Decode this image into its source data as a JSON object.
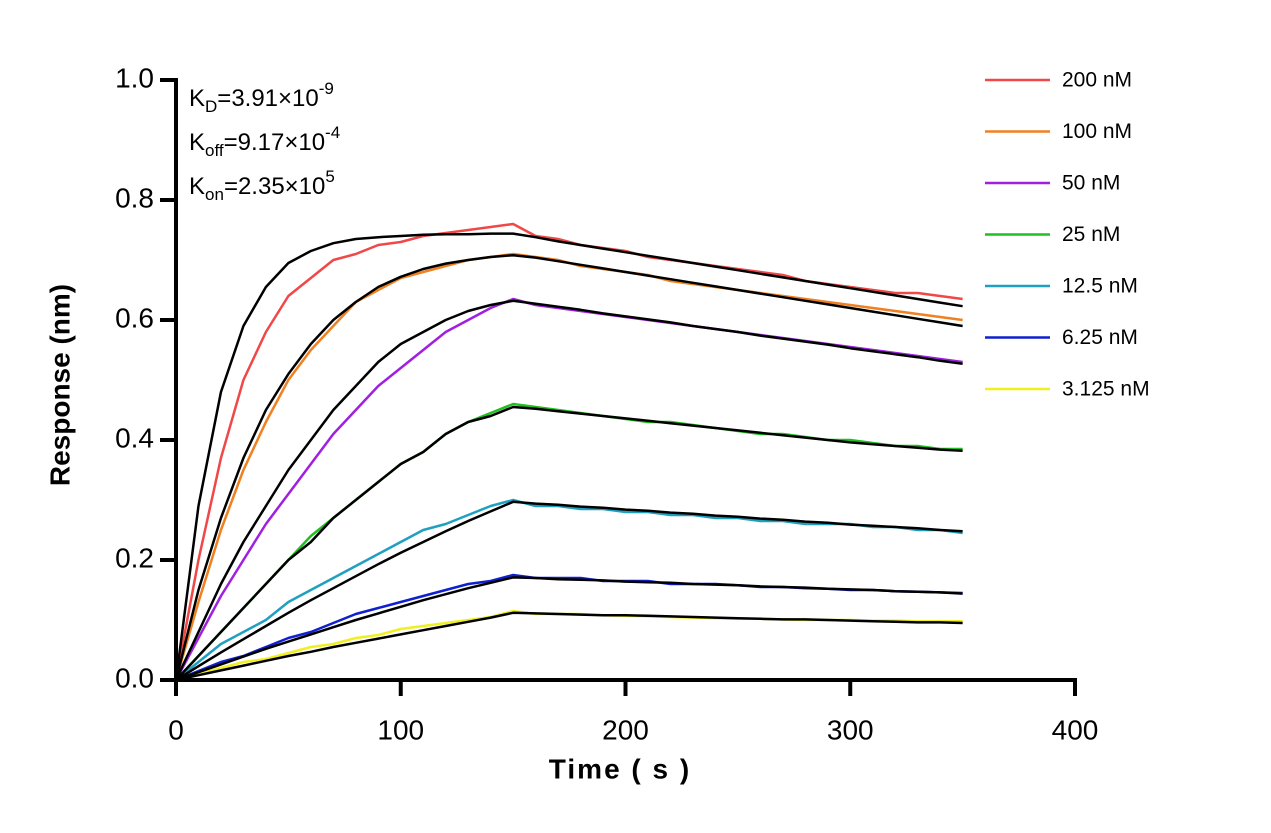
{
  "chart_data": {
    "type": "line",
    "xlabel": "Time ( s )",
    "ylabel": "Response (nm)",
    "xlim": [
      0,
      400
    ],
    "xticks": [
      0,
      100,
      200,
      300,
      400
    ],
    "ylim": [
      0,
      1
    ],
    "yticks": [
      {
        "value": 0,
        "label": "0.0"
      },
      0.2,
      0.4,
      0.6,
      0.8,
      {
        "value": 1,
        "label": "1.0"
      }
    ],
    "legend": "right",
    "annotations": [
      {
        "main": "K",
        "sub": "D",
        "text": "=3.91×10",
        "sup": "-9"
      },
      {
        "main": "K",
        "sub": "off",
        "text": "=9.17×10",
        "sup": "-4"
      },
      {
        "main": "K",
        "sub": "on",
        "text": "=2.35×10",
        "sup": "5"
      }
    ],
    "x": [
      0,
      10,
      20,
      30,
      40,
      50,
      60,
      70,
      80,
      90,
      100,
      110,
      120,
      130,
      140,
      150,
      160,
      170,
      180,
      190,
      200,
      210,
      220,
      230,
      240,
      250,
      260,
      270,
      280,
      290,
      300,
      310,
      320,
      330,
      340,
      350
    ],
    "series": [
      {
        "name": "200 nM",
        "color": "#f04848",
        "values": [
          0,
          0.2,
          0.37,
          0.5,
          0.58,
          0.64,
          0.67,
          0.7,
          0.71,
          0.725,
          0.73,
          0.74,
          0.745,
          0.75,
          0.755,
          0.76,
          0.74,
          0.735,
          0.725,
          0.72,
          0.715,
          0.705,
          0.7,
          0.695,
          0.69,
          0.685,
          0.68,
          0.675,
          0.665,
          0.66,
          0.655,
          0.65,
          0.645,
          0.645,
          0.64,
          0.635
        ]
      },
      {
        "name": "100 nM",
        "color": "#f08020",
        "values": [
          0,
          0.13,
          0.25,
          0.35,
          0.43,
          0.5,
          0.55,
          0.59,
          0.63,
          0.65,
          0.67,
          0.68,
          0.69,
          0.7,
          0.705,
          0.71,
          0.705,
          0.7,
          0.69,
          0.685,
          0.68,
          0.675,
          0.665,
          0.66,
          0.655,
          0.65,
          0.645,
          0.64,
          0.635,
          0.63,
          0.625,
          0.62,
          0.615,
          0.61,
          0.605,
          0.6
        ]
      },
      {
        "name": "50 nM",
        "color": "#a020e0",
        "values": [
          0,
          0.07,
          0.14,
          0.2,
          0.26,
          0.31,
          0.36,
          0.41,
          0.45,
          0.49,
          0.52,
          0.55,
          0.58,
          0.6,
          0.62,
          0.635,
          0.625,
          0.62,
          0.615,
          0.61,
          0.605,
          0.6,
          0.595,
          0.59,
          0.585,
          0.58,
          0.575,
          0.57,
          0.565,
          0.56,
          0.555,
          0.55,
          0.545,
          0.54,
          0.535,
          0.53
        ]
      },
      {
        "name": "25 nM",
        "color": "#20c020",
        "values": [
          0,
          0.04,
          0.08,
          0.12,
          0.16,
          0.2,
          0.24,
          0.27,
          0.3,
          0.33,
          0.36,
          0.38,
          0.41,
          0.43,
          0.445,
          0.46,
          0.455,
          0.45,
          0.445,
          0.44,
          0.435,
          0.43,
          0.43,
          0.425,
          0.42,
          0.415,
          0.41,
          0.41,
          0.405,
          0.4,
          0.4,
          0.395,
          0.39,
          0.39,
          0.385,
          0.385
        ]
      },
      {
        "name": "12.5 nM",
        "color": "#20a0c0",
        "values": [
          0,
          0.03,
          0.06,
          0.08,
          0.1,
          0.13,
          0.15,
          0.17,
          0.19,
          0.21,
          0.23,
          0.25,
          0.26,
          0.275,
          0.29,
          0.3,
          0.29,
          0.29,
          0.285,
          0.285,
          0.28,
          0.28,
          0.275,
          0.275,
          0.27,
          0.27,
          0.265,
          0.265,
          0.26,
          0.26,
          0.26,
          0.255,
          0.255,
          0.25,
          0.25,
          0.245
        ]
      },
      {
        "name": "6.25 nM",
        "color": "#1020d0",
        "values": [
          0,
          0.015,
          0.03,
          0.04,
          0.055,
          0.07,
          0.08,
          0.095,
          0.11,
          0.12,
          0.13,
          0.14,
          0.15,
          0.16,
          0.165,
          0.175,
          0.17,
          0.17,
          0.17,
          0.165,
          0.165,
          0.165,
          0.16,
          0.16,
          0.16,
          0.158,
          0.155,
          0.155,
          0.153,
          0.152,
          0.15,
          0.15,
          0.148,
          0.147,
          0.146,
          0.145
        ]
      },
      {
        "name": "3.125 nM",
        "color": "#f0f020",
        "values": [
          0,
          0.01,
          0.02,
          0.03,
          0.035,
          0.045,
          0.055,
          0.06,
          0.07,
          0.075,
          0.085,
          0.09,
          0.095,
          0.1,
          0.105,
          0.115,
          0.11,
          0.11,
          0.11,
          0.108,
          0.107,
          0.106,
          0.105,
          0.104,
          0.103,
          0.102,
          0.102,
          0.101,
          0.1,
          0.1,
          0.1,
          0.099,
          0.099,
          0.098,
          0.098,
          0.098
        ]
      }
    ],
    "fits": [
      {
        "color": "#000000",
        "values": [
          0,
          0.29,
          0.48,
          0.59,
          0.655,
          0.695,
          0.715,
          0.728,
          0.735,
          0.738,
          0.74,
          0.742,
          0.743,
          0.743,
          0.744,
          0.744,
          0.738,
          0.731,
          0.725,
          0.719,
          0.713,
          0.707,
          0.701,
          0.695,
          0.689,
          0.683,
          0.677,
          0.671,
          0.665,
          0.659,
          0.653,
          0.647,
          0.641,
          0.635,
          0.629,
          0.623
        ]
      },
      {
        "color": "#000000",
        "values": [
          0,
          0.15,
          0.27,
          0.37,
          0.45,
          0.51,
          0.56,
          0.6,
          0.63,
          0.655,
          0.672,
          0.685,
          0.694,
          0.7,
          0.705,
          0.708,
          0.704,
          0.698,
          0.692,
          0.686,
          0.68,
          0.674,
          0.668,
          0.662,
          0.656,
          0.65,
          0.644,
          0.638,
          0.632,
          0.626,
          0.62,
          0.614,
          0.608,
          0.602,
          0.596,
          0.59
        ]
      },
      {
        "color": "#000000",
        "values": [
          0,
          0.08,
          0.16,
          0.23,
          0.29,
          0.35,
          0.4,
          0.45,
          0.49,
          0.53,
          0.56,
          0.58,
          0.6,
          0.615,
          0.625,
          0.632,
          0.627,
          0.622,
          0.617,
          0.611,
          0.606,
          0.601,
          0.596,
          0.59,
          0.585,
          0.58,
          0.574,
          0.569,
          0.564,
          0.559,
          0.553,
          0.548,
          0.543,
          0.538,
          0.532,
          0.527
        ]
      },
      {
        "color": "#000000",
        "values": [
          0,
          0.04,
          0.08,
          0.12,
          0.16,
          0.2,
          0.23,
          0.27,
          0.3,
          0.33,
          0.36,
          0.38,
          0.41,
          0.43,
          0.44,
          0.455,
          0.452,
          0.448,
          0.444,
          0.44,
          0.436,
          0.432,
          0.428,
          0.424,
          0.42,
          0.416,
          0.412,
          0.408,
          0.404,
          0.4,
          0.396,
          0.393,
          0.39,
          0.387,
          0.384,
          0.382
        ]
      },
      {
        "color": "#000000",
        "values": [
          0,
          0.023,
          0.046,
          0.068,
          0.09,
          0.112,
          0.133,
          0.153,
          0.173,
          0.193,
          0.212,
          0.23,
          0.248,
          0.265,
          0.281,
          0.297,
          0.294,
          0.292,
          0.289,
          0.287,
          0.284,
          0.282,
          0.279,
          0.277,
          0.274,
          0.272,
          0.269,
          0.267,
          0.264,
          0.262,
          0.259,
          0.257,
          0.255,
          0.253,
          0.25,
          0.248
        ]
      },
      {
        "color": "#000000",
        "values": [
          0,
          0.013,
          0.026,
          0.039,
          0.052,
          0.064,
          0.076,
          0.088,
          0.1,
          0.111,
          0.122,
          0.133,
          0.143,
          0.153,
          0.162,
          0.171,
          0.17,
          0.168,
          0.167,
          0.166,
          0.164,
          0.163,
          0.162,
          0.16,
          0.159,
          0.158,
          0.156,
          0.155,
          0.154,
          0.152,
          0.151,
          0.15,
          0.148,
          0.147,
          0.146,
          0.144
        ]
      },
      {
        "color": "#000000",
        "values": [
          0,
          0.008,
          0.016,
          0.024,
          0.032,
          0.04,
          0.047,
          0.055,
          0.062,
          0.069,
          0.076,
          0.083,
          0.09,
          0.097,
          0.104,
          0.112,
          0.111,
          0.11,
          0.109,
          0.108,
          0.108,
          0.107,
          0.106,
          0.105,
          0.104,
          0.103,
          0.102,
          0.101,
          0.101,
          0.1,
          0.099,
          0.098,
          0.097,
          0.096,
          0.096,
          0.095
        ]
      }
    ]
  }
}
